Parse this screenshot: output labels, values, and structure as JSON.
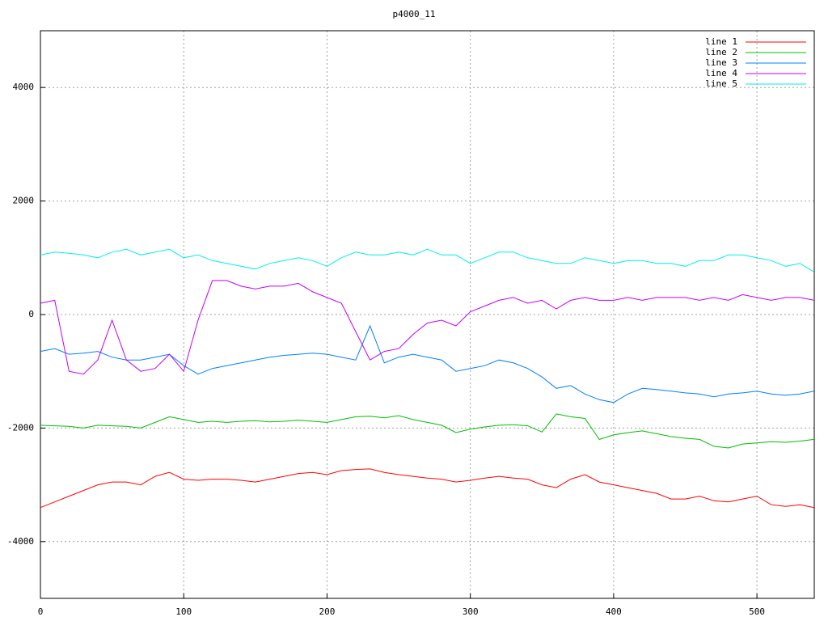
{
  "chart_data": {
    "type": "line",
    "title": "p4000_11",
    "x": [
      0,
      10,
      20,
      30,
      40,
      50,
      60,
      70,
      80,
      90,
      100,
      110,
      120,
      130,
      140,
      150,
      160,
      170,
      180,
      190,
      200,
      210,
      220,
      230,
      240,
      250,
      260,
      270,
      280,
      290,
      300,
      310,
      320,
      330,
      340,
      350,
      360,
      370,
      380,
      390,
      400,
      410,
      420,
      430,
      440,
      450,
      460,
      470,
      480,
      490,
      500,
      510,
      520,
      530,
      540
    ],
    "series": [
      {
        "name": "line 1",
        "color": "#ff0000",
        "values": [
          -3400,
          -3300,
          -3200,
          -3100,
          -3000,
          -2950,
          -2950,
          -3000,
          -2850,
          -2780,
          -2900,
          -2920,
          -2900,
          -2900,
          -2920,
          -2950,
          -2900,
          -2850,
          -2800,
          -2780,
          -2820,
          -2750,
          -2730,
          -2720,
          -2780,
          -2820,
          -2850,
          -2880,
          -2900,
          -2950,
          -2920,
          -2880,
          -2850,
          -2880,
          -2900,
          -3000,
          -3050,
          -2900,
          -2820,
          -2950,
          -3000,
          -3050,
          -3100,
          -3150,
          -3250,
          -3250,
          -3200,
          -3280,
          -3300,
          -3250,
          -3200,
          -3350,
          -3380,
          -3350,
          -3400
        ]
      },
      {
        "name": "line 2",
        "color": "#00c000",
        "values": [
          -1950,
          -1960,
          -1970,
          -2000,
          -1950,
          -1960,
          -1970,
          -2000,
          -1900,
          -1800,
          -1850,
          -1900,
          -1880,
          -1900,
          -1880,
          -1870,
          -1890,
          -1880,
          -1860,
          -1880,
          -1900,
          -1850,
          -1800,
          -1790,
          -1820,
          -1780,
          -1850,
          -1900,
          -1950,
          -2080,
          -2020,
          -1980,
          -1950,
          -1940,
          -1960,
          -2070,
          -1750,
          -1800,
          -1830,
          -2200,
          -2120,
          -2080,
          -2050,
          -2100,
          -2150,
          -2180,
          -2200,
          -2320,
          -2350,
          -2280,
          -2260,
          -2240,
          -2250,
          -2230,
          -2200
        ]
      },
      {
        "name": "line 3",
        "color": "#0080ff",
        "values": [
          -650,
          -600,
          -700,
          -680,
          -650,
          -750,
          -800,
          -800,
          -750,
          -700,
          -900,
          -1050,
          -950,
          -900,
          -850,
          -800,
          -750,
          -720,
          -700,
          -680,
          -700,
          -750,
          -800,
          -200,
          -850,
          -750,
          -700,
          -750,
          -800,
          -1000,
          -950,
          -900,
          -800,
          -850,
          -950,
          -1100,
          -1300,
          -1250,
          -1400,
          -1500,
          -1550,
          -1400,
          -1300,
          -1320,
          -1350,
          -1380,
          -1400,
          -1450,
          -1400,
          -1380,
          -1350,
          -1400,
          -1420,
          -1400,
          -1350
        ]
      },
      {
        "name": "line 4",
        "color": "#c000ff",
        "values": [
          200,
          250,
          -1000,
          -1050,
          -800,
          -100,
          -800,
          -1000,
          -950,
          -700,
          -1000,
          -100,
          600,
          600,
          500,
          450,
          500,
          500,
          550,
          400,
          300,
          200,
          -300,
          -800,
          -650,
          -600,
          -350,
          -150,
          -100,
          -200,
          50,
          150,
          250,
          300,
          200,
          250,
          100,
          250,
          300,
          250,
          250,
          300,
          250,
          300,
          300,
          300,
          250,
          300,
          250,
          350,
          300,
          250,
          300,
          300,
          250
        ]
      },
      {
        "name": "line 5",
        "color": "#00eeee",
        "values": [
          1050,
          1100,
          1080,
          1050,
          1000,
          1100,
          1150,
          1050,
          1100,
          1150,
          1000,
          1050,
          950,
          900,
          850,
          800,
          900,
          950,
          1000,
          950,
          850,
          1000,
          1100,
          1050,
          1050,
          1100,
          1050,
          1150,
          1050,
          1050,
          900,
          1000,
          1100,
          1100,
          1000,
          950,
          900,
          900,
          1000,
          950,
          900,
          950,
          950,
          900,
          900,
          850,
          950,
          950,
          1050,
          1050,
          1000,
          950,
          850,
          900,
          750
        ]
      }
    ],
    "xlim": [
      0,
      540
    ],
    "ylim": [
      -5000,
      5000
    ],
    "xticks": [
      0,
      100,
      200,
      300,
      400,
      500
    ],
    "yticks": [
      -4000,
      -2000,
      0,
      2000,
      4000
    ],
    "grid": true,
    "legend": "top-right"
  }
}
